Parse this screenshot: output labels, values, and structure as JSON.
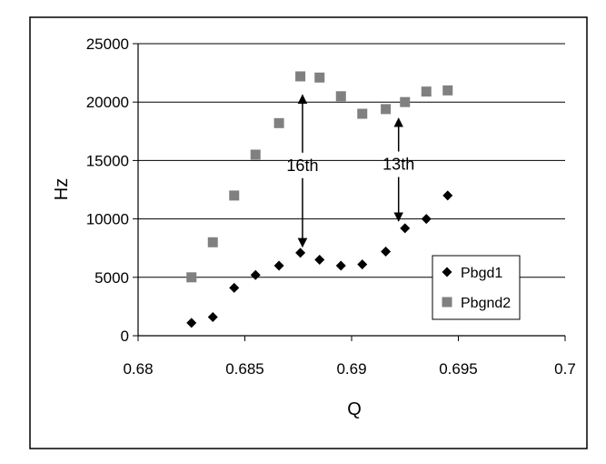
{
  "chart_data": {
    "type": "scatter",
    "title": "",
    "xlabel": "Q",
    "ylabel": "Hz",
    "xlim": [
      0.68,
      0.7
    ],
    "ylim": [
      0,
      25000
    ],
    "x_ticks": [
      "0.68",
      "0.685",
      "0.69",
      "0.695",
      "0.7"
    ],
    "y_ticks": [
      "0",
      "5000",
      "10000",
      "15000",
      "20000",
      "25000"
    ],
    "grid": "horizontal",
    "legend_position": "bottom-right",
    "series": [
      {
        "name": "Pbgd1",
        "marker": "diamond",
        "color": "#000000",
        "points": [
          {
            "x": 0.6825,
            "y": 1100
          },
          {
            "x": 0.6835,
            "y": 1600
          },
          {
            "x": 0.6845,
            "y": 4100
          },
          {
            "x": 0.6855,
            "y": 5200
          },
          {
            "x": 0.6866,
            "y": 6000
          },
          {
            "x": 0.6876,
            "y": 7100
          },
          {
            "x": 0.6885,
            "y": 6500
          },
          {
            "x": 0.6895,
            "y": 6000
          },
          {
            "x": 0.6905,
            "y": 6100
          },
          {
            "x": 0.6916,
            "y": 7200
          },
          {
            "x": 0.6925,
            "y": 9200
          },
          {
            "x": 0.6935,
            "y": 10000
          },
          {
            "x": 0.6945,
            "y": 12000
          }
        ]
      },
      {
        "name": "Pbgnd2",
        "marker": "square",
        "color": "#808080",
        "points": [
          {
            "x": 0.6825,
            "y": 5000
          },
          {
            "x": 0.6835,
            "y": 8000
          },
          {
            "x": 0.6845,
            "y": 12000
          },
          {
            "x": 0.6855,
            "y": 15500
          },
          {
            "x": 0.6866,
            "y": 18200
          },
          {
            "x": 0.6876,
            "y": 22200
          },
          {
            "x": 0.6885,
            "y": 22100
          },
          {
            "x": 0.6895,
            "y": 20500
          },
          {
            "x": 0.6905,
            "y": 19000
          },
          {
            "x": 0.6916,
            "y": 19400
          },
          {
            "x": 0.6925,
            "y": 20000
          },
          {
            "x": 0.6935,
            "y": 20900
          },
          {
            "x": 0.6945,
            "y": 21000
          }
        ]
      }
    ],
    "annotations": [
      {
        "label": "16th",
        "x": 0.6877,
        "y_from": 7000,
        "y_to": 22000
      },
      {
        "label": "13th",
        "x": 0.6922,
        "y_from": 9200,
        "y_to": 20000
      }
    ]
  }
}
